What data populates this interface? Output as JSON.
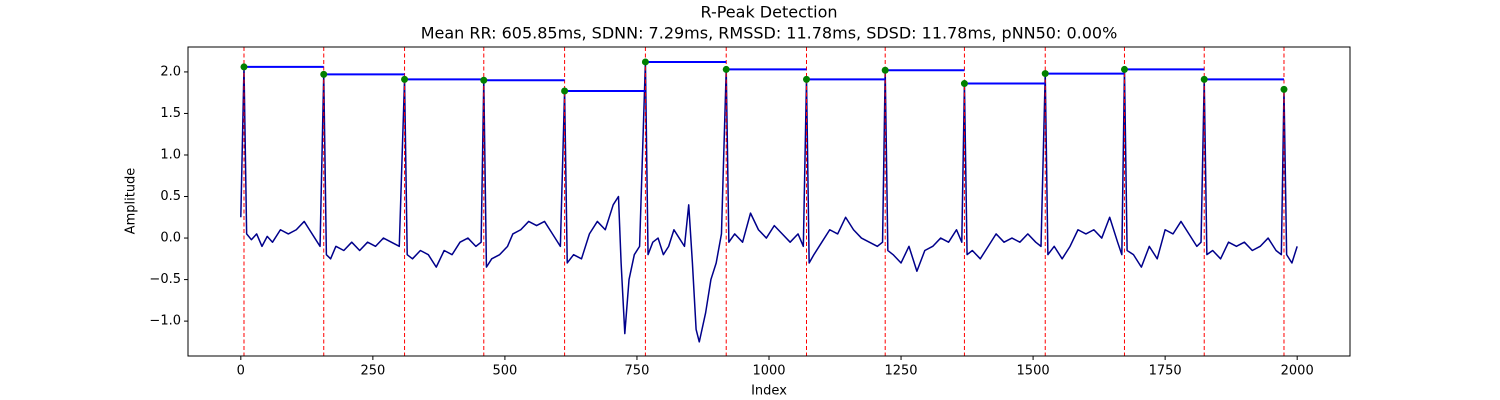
{
  "chart_data": {
    "type": "line",
    "title": "R-Peak Detection",
    "subtitle": "Mean RR: 605.85ms, SDNN: 7.29ms, RMSSD: 11.78ms, SDSD: 11.78ms, pNN50: 0.00%",
    "xlabel": "Index",
    "ylabel": "Amplitude",
    "xlim": [
      -100,
      2100
    ],
    "ylim": [
      -1.42,
      2.3
    ],
    "xticks": [
      0,
      250,
      500,
      750,
      1000,
      1250,
      1500,
      1750,
      2000
    ],
    "yticks": [
      {
        "value": -1,
        "label": "−1.0"
      },
      {
        "value": -0.5,
        "label": "−0.5"
      },
      {
        "value": 0,
        "label": "0.0"
      },
      {
        "value": 0.5,
        "label": "0.5"
      },
      {
        "value": 1,
        "label": "1.0"
      },
      {
        "value": 1.5,
        "label": "1.5"
      },
      {
        "value": 2,
        "label": "2.0"
      }
    ],
    "signal": {
      "color": "#00008b",
      "x": [
        0,
        6,
        11,
        20,
        30,
        40,
        50,
        60,
        75,
        90,
        105,
        120,
        130,
        140,
        150,
        157,
        162,
        170,
        180,
        195,
        210,
        225,
        240,
        255,
        270,
        285,
        300,
        310,
        315,
        325,
        340,
        355,
        370,
        385,
        400,
        415,
        430,
        445,
        455,
        460,
        465,
        475,
        490,
        505,
        515,
        530,
        545,
        560,
        575,
        590,
        605,
        613,
        618,
        630,
        645,
        660,
        675,
        690,
        705,
        715,
        720,
        727,
        735,
        745,
        755,
        766,
        771,
        780,
        790,
        800,
        810,
        820,
        830,
        840,
        848,
        855,
        862,
        868,
        880,
        890,
        900,
        910,
        919,
        924,
        935,
        950,
        965,
        980,
        995,
        1010,
        1025,
        1040,
        1055,
        1065,
        1071,
        1076,
        1085,
        1100,
        1115,
        1130,
        1145,
        1160,
        1175,
        1190,
        1205,
        1215,
        1220,
        1225,
        1235,
        1250,
        1265,
        1280,
        1295,
        1310,
        1325,
        1340,
        1355,
        1365,
        1370,
        1375,
        1385,
        1400,
        1415,
        1430,
        1445,
        1460,
        1475,
        1490,
        1505,
        1515,
        1523,
        1528,
        1540,
        1555,
        1570,
        1585,
        1600,
        1615,
        1630,
        1645,
        1660,
        1668,
        1673,
        1678,
        1690,
        1705,
        1720,
        1735,
        1750,
        1765,
        1780,
        1795,
        1810,
        1818,
        1824,
        1829,
        1840,
        1855,
        1870,
        1885,
        1900,
        1915,
        1930,
        1945,
        1960,
        1970,
        1975,
        1980,
        1990,
        2000
      ],
      "values": [
        0.25,
        2.06,
        0.05,
        -0.02,
        0.05,
        -0.1,
        0.02,
        -0.05,
        0.1,
        0.05,
        0.1,
        0.2,
        0.1,
        0.0,
        -0.1,
        1.97,
        -0.2,
        -0.25,
        -0.1,
        -0.15,
        -0.05,
        -0.15,
        -0.05,
        -0.1,
        0.0,
        -0.05,
        -0.1,
        1.91,
        -0.2,
        -0.25,
        -0.15,
        -0.2,
        -0.35,
        -0.15,
        -0.2,
        -0.05,
        0.0,
        -0.1,
        -0.05,
        1.9,
        -0.35,
        -0.25,
        -0.2,
        -0.1,
        0.05,
        0.1,
        0.2,
        0.15,
        0.2,
        0.05,
        -0.1,
        1.77,
        -0.3,
        -0.2,
        -0.25,
        0.05,
        0.2,
        0.1,
        0.4,
        0.5,
        -0.3,
        -1.15,
        -0.5,
        -0.2,
        -0.1,
        2.12,
        -0.2,
        -0.05,
        0.0,
        -0.2,
        -0.1,
        0.1,
        0.0,
        -0.1,
        0.4,
        -0.3,
        -1.1,
        -1.25,
        -0.9,
        -0.5,
        -0.3,
        0.05,
        2.03,
        -0.05,
        0.05,
        -0.05,
        0.3,
        0.1,
        0.0,
        0.15,
        0.05,
        -0.05,
        0.05,
        -0.1,
        1.91,
        -0.3,
        -0.2,
        -0.05,
        0.1,
        0.05,
        0.25,
        0.1,
        0.0,
        -0.05,
        -0.1,
        -0.05,
        2.02,
        -0.15,
        -0.2,
        -0.3,
        -0.1,
        -0.4,
        -0.15,
        -0.1,
        0.0,
        -0.05,
        0.1,
        -0.05,
        1.86,
        -0.2,
        -0.15,
        -0.25,
        -0.1,
        0.05,
        -0.05,
        0.0,
        -0.05,
        0.05,
        -0.05,
        -0.1,
        1.98,
        -0.2,
        -0.1,
        -0.25,
        -0.1,
        0.1,
        0.05,
        0.1,
        0.0,
        0.25,
        -0.05,
        -0.2,
        2.03,
        -0.15,
        -0.2,
        -0.35,
        -0.1,
        -0.25,
        0.1,
        0.05,
        0.2,
        0.05,
        -0.1,
        -0.05,
        1.91,
        -0.2,
        -0.15,
        -0.25,
        -0.05,
        -0.1,
        -0.05,
        -0.15,
        -0.1,
        0.0,
        -0.15,
        -0.2,
        1.79,
        -0.2,
        -0.3,
        -0.1
      ]
    },
    "peaks": {
      "color": "#008000",
      "line_color": "#ff0000",
      "rr_color": "#0000ff",
      "x": [
        6,
        157,
        310,
        460,
        613,
        766,
        919,
        1071,
        1220,
        1370,
        1523,
        1673,
        1824,
        1975
      ],
      "values": [
        2.06,
        1.97,
        1.91,
        1.9,
        1.77,
        2.12,
        2.03,
        1.91,
        2.02,
        1.86,
        1.98,
        2.03,
        1.91,
        1.79
      ]
    }
  }
}
